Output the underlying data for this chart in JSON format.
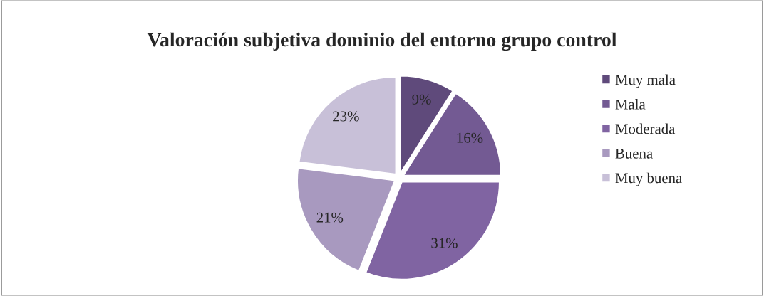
{
  "chart_data": {
    "type": "pie",
    "title": "Valoración subjetiva dominio del entorno grupo control",
    "categories": [
      "Muy mala",
      "Mala",
      "Moderada",
      "Buena",
      "Muy buena"
    ],
    "values": [
      9,
      16,
      31,
      21,
      23
    ],
    "value_labels": [
      "9%",
      "16%",
      "31%",
      "21%",
      "23%"
    ],
    "colors": [
      "#5f4a7b",
      "#735a93",
      "#8064a2",
      "#a899bf",
      "#c8c0d8"
    ],
    "legend": "right"
  }
}
